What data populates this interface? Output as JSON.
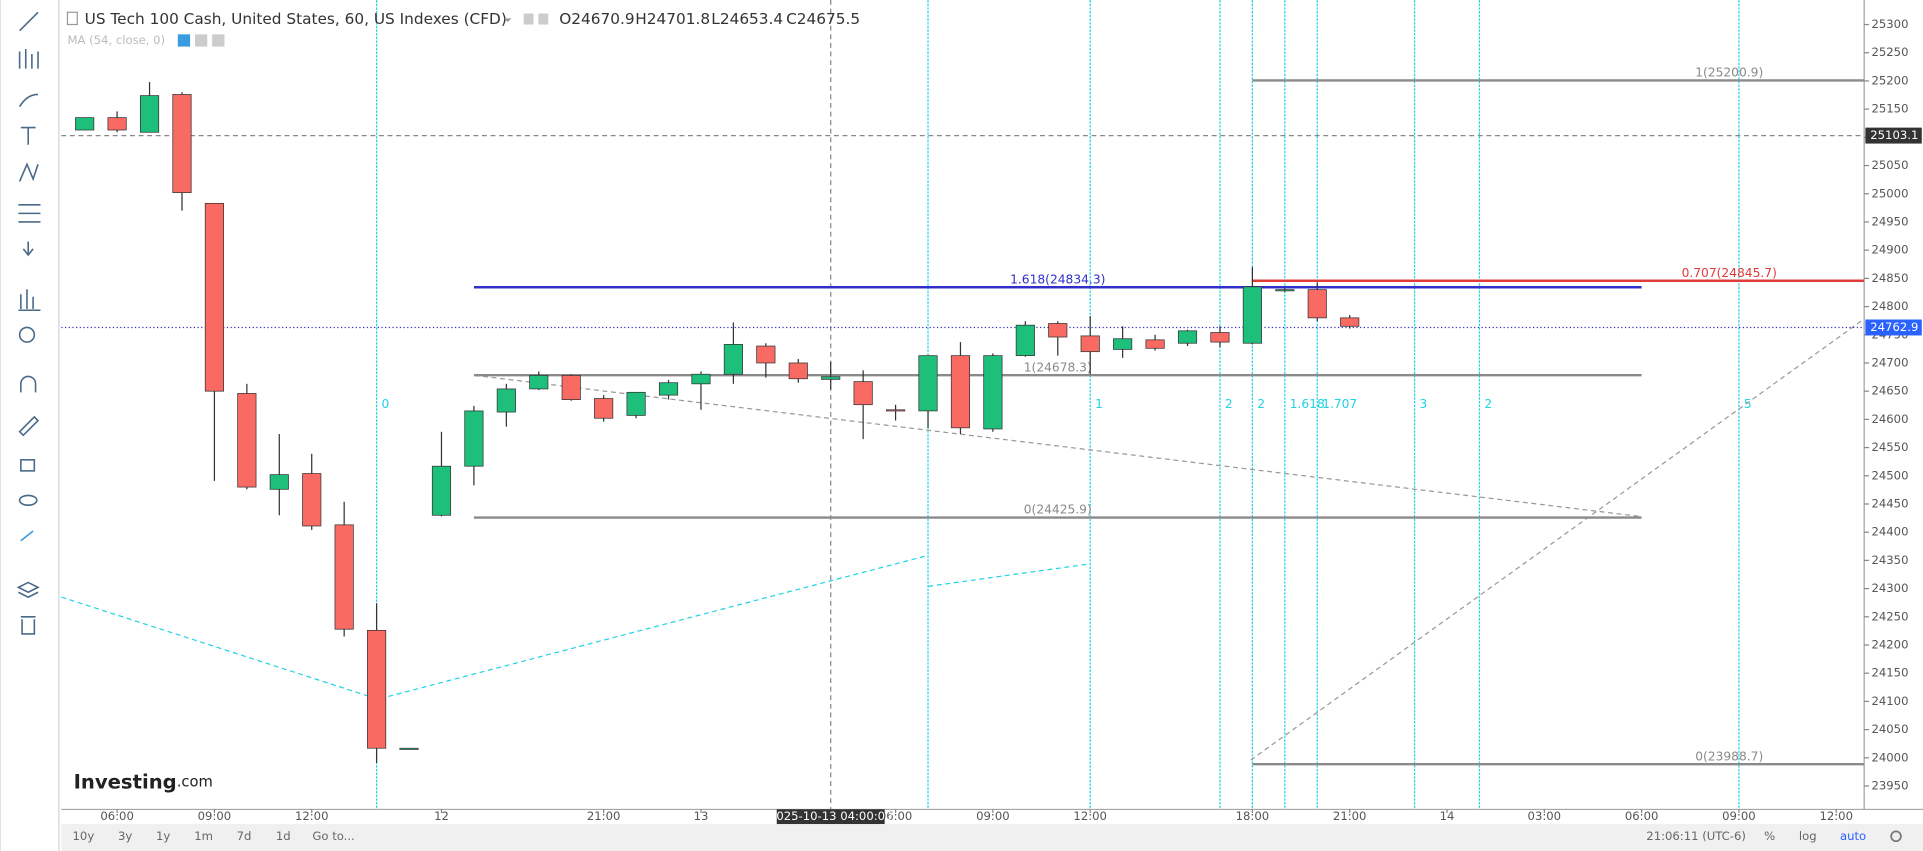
{
  "header": {
    "title": "US Tech 100 Cash, United States, 60, US Indexes (CFD)",
    "open": "O24670.9",
    "high": "H24701.8",
    "low": "L24653.4",
    "close": "C24675.5",
    "indicator": "MA (54, close, 0)"
  },
  "logo": {
    "name": "Investing",
    "suffix": ".com"
  },
  "chart_data": {
    "type": "candlestick",
    "up_color": "#1dbf7b",
    "down_color": "#f96a62",
    "candles": {
      "open": [
        25113,
        25135,
        25109,
        25176,
        24983,
        24646,
        24476,
        24504,
        24413,
        24226,
        24017,
        24430,
        24517,
        24613,
        24654,
        24678,
        24637,
        24607,
        24643,
        24663,
        24680,
        24730,
        24700,
        24670.9,
        24667,
        24617,
        24615,
        24713,
        24583,
        24713,
        24770,
        24748,
        24724,
        24741,
        24735,
        24754,
        24735,
        24830,
        24830,
        24780
      ],
      "high": [
        25135,
        25146,
        25198,
        25180,
        24983,
        24663,
        24574,
        24539,
        24454,
        24274,
        24017,
        24578,
        24624,
        24663,
        24685,
        24680,
        24643,
        24648,
        24670,
        24685,
        24772,
        24735,
        24707,
        24701.8,
        24687,
        24626,
        24713,
        24737,
        24717,
        24774,
        24774,
        24783,
        24765,
        24750,
        24759,
        24765,
        24870,
        24833,
        24843,
        24785
      ],
      "low": [
        25113,
        25109,
        25109,
        24970,
        24491,
        24476,
        24430,
        24404,
        24215,
        23991,
        24017,
        24428,
        24483,
        24587,
        24652,
        24633,
        24596,
        24602,
        24635,
        24617,
        24663,
        24674,
        24665,
        24653.4,
        24565,
        24598,
        24585,
        24574,
        24578,
        24711,
        24713,
        24680,
        24709,
        24722,
        24730,
        24728,
        24733,
        24826,
        24774,
        24761
      ],
      "close": [
        25135,
        25113,
        25174,
        25002,
        24650,
        24480,
        24502,
        24411,
        24228,
        24017,
        24017,
        24517,
        24615,
        24654,
        24678,
        24635,
        24602,
        24648,
        24665,
        24680,
        24733,
        24700,
        24672,
        24675.5,
        24626,
        24615,
        24713,
        24585,
        24713,
        24767,
        24746,
        24720,
        24743,
        24726,
        24757,
        24737,
        24835,
        24830,
        24780,
        24765
      ]
    },
    "xlim": [
      -0.72,
      54.86
    ],
    "xticks": [
      {
        "value": 1,
        "label": "06:00"
      },
      {
        "value": 4,
        "label": "09:00"
      },
      {
        "value": 7,
        "label": "12:00"
      },
      {
        "value": 11,
        "label": "12"
      },
      {
        "value": 16,
        "label": "21:00"
      },
      {
        "value": 19,
        "label": "13"
      },
      {
        "value": 25,
        "label": "06:00"
      },
      {
        "value": 28,
        "label": "09:00"
      },
      {
        "value": 31,
        "label": "12:00"
      },
      {
        "value": 36,
        "label": "18:00"
      },
      {
        "value": 39,
        "label": "21:00"
      },
      {
        "value": 42,
        "label": "14"
      },
      {
        "value": 45,
        "label": "03:00"
      },
      {
        "value": 48,
        "label": "06:00"
      },
      {
        "value": 51,
        "label": "09:00"
      },
      {
        "value": 54,
        "label": "12:00"
      }
    ],
    "ylim": [
      23908.7,
      25343.5
    ],
    "yticks": [
      23950,
      24000,
      24050,
      24100,
      24150,
      24200,
      24250,
      24300,
      24350,
      24400,
      24450,
      24500,
      24550,
      24600,
      24650,
      24700,
      24750,
      24800,
      24850,
      24900,
      24950,
      25000,
      25050,
      25100,
      25150,
      25200,
      25250,
      25300
    ],
    "crosshair": {
      "x": 23,
      "y": 25103.1,
      "x_label": "2025-10-13 04:00:00"
    },
    "last_price": 24762.9,
    "levels": [
      {
        "label": "1.618(24834.3)",
        "value": 24834.3,
        "x_range": [
          12,
          48
        ],
        "color": "#3030c8"
      },
      {
        "label": "1(24678.3)",
        "value": 24678.3,
        "x_range": [
          12,
          48
        ],
        "color": "#8a8a8a"
      },
      {
        "label": "0(24425.9)",
        "value": 24425.9,
        "x_range": [
          12,
          48
        ],
        "color": "#8a8a8a"
      },
      {
        "label": "1(25200.9)",
        "value": 25200.9,
        "x_range": [
          36,
          54.86
        ],
        "color": "#8a8a8a"
      },
      {
        "label": "0.707(24845.7)",
        "value": 24845.7,
        "x_range": [
          36,
          54.86
        ],
        "color": "#e03b3b"
      },
      {
        "label": "0(23988.7)",
        "value": 23988.7,
        "x_range": [
          36,
          54.86
        ],
        "color": "#8a8a8a"
      }
    ],
    "cycle_lines": [
      {
        "x": 9,
        "label": "0"
      },
      {
        "x": 26
      },
      {
        "x": 31,
        "label": "1"
      },
      {
        "x": 35,
        "label": "2"
      },
      {
        "x": 36,
        "label": "2"
      },
      {
        "x": 37,
        "label": "1.618"
      },
      {
        "x": 38,
        "label": "1.707"
      },
      {
        "x": 41,
        "label": "3"
      },
      {
        "x": 43,
        "label": "2"
      },
      {
        "x": 51,
        "label": "5"
      }
    ],
    "trend_lines": [
      {
        "color": "#22d3e6",
        "x": [
          -0.72,
          9.04,
          26.01
        ],
        "y": [
          24285,
          24104,
          24359
        ]
      },
      {
        "color": "#22d3e6",
        "x": [
          26.01,
          30.89
        ],
        "y": [
          24304,
          24343
        ]
      },
      {
        "color": "#999999",
        "x": [
          12.02,
          47.94
        ],
        "y": [
          24678,
          24428
        ]
      },
      {
        "color": "#999999",
        "x": [
          35.95,
          54.86
        ],
        "y": [
          23996,
          24778
        ]
      }
    ]
  },
  "bottom_bar": {
    "ranges": [
      "10y",
      "3y",
      "1y",
      "1m",
      "7d",
      "1d",
      "Go to..."
    ],
    "clock": "21:06:11 (UTC-6)",
    "percent": "%",
    "log": "log",
    "auto": "auto"
  }
}
